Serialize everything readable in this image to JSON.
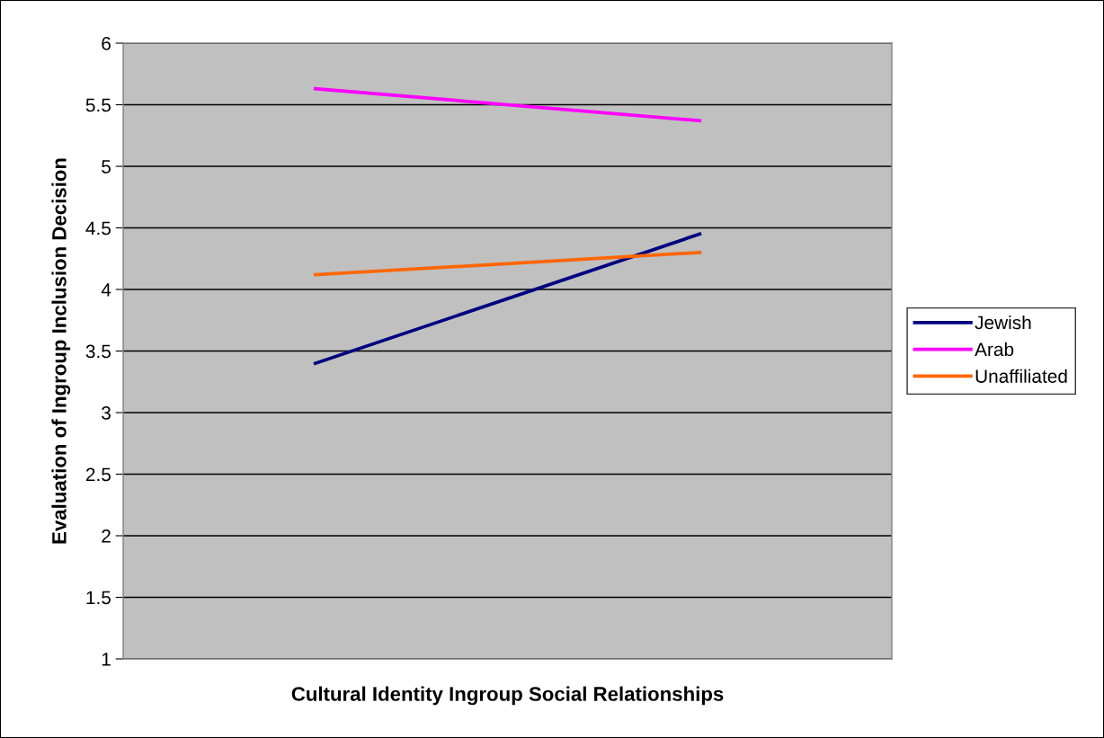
{
  "chart_data": {
    "type": "line",
    "xlabel": "Cultural Identity Ingroup Social Relationships",
    "ylabel": "Evaluation of Ingroup Inclusion Decision",
    "categories": [
      null,
      null
    ],
    "series": [
      {
        "name": "Jewish",
        "color": "#000080",
        "values": [
          3.4,
          4.45
        ]
      },
      {
        "name": "Arab",
        "color": "#ff00ff",
        "values": [
          5.63,
          5.37
        ]
      },
      {
        "name": "Unaffiliated",
        "color": "#ff6600",
        "values": [
          4.12,
          4.3
        ]
      }
    ],
    "ylim": [
      1,
      6
    ],
    "yticks": [
      1,
      1.5,
      2,
      2.5,
      3,
      3.5,
      4,
      4.5,
      5,
      5.5,
      6
    ],
    "grid": "y",
    "legend": "right",
    "tick_labels": "y",
    "marker": "none",
    "line_style": "solid"
  }
}
